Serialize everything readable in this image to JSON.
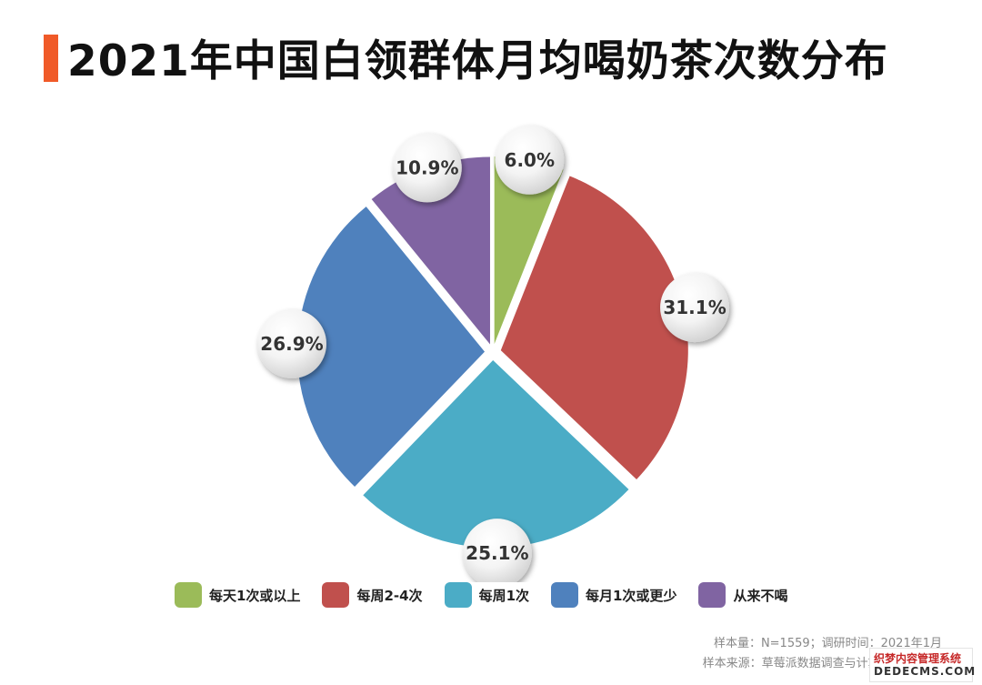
{
  "header": {
    "title": "2021年中国白领群体月均喝奶茶次数分布"
  },
  "chart_data": {
    "type": "pie",
    "title": "2021年中国白领群体月均喝奶茶次数分布",
    "categories": [
      "每天1次或以上",
      "每周2-4次",
      "每周1次",
      "每月1次或更少",
      "从来不喝"
    ],
    "values": [
      6.0,
      31.1,
      25.1,
      26.9,
      10.9
    ],
    "data_labels": [
      "6.0%",
      "31.1%",
      "25.1%",
      "26.9%",
      "10.9%"
    ],
    "colors": [
      "#9bbb59",
      "#c0504d",
      "#4bacc6",
      "#4f81bd",
      "#8064a2"
    ],
    "unit": "%",
    "legend_position": "bottom"
  },
  "notes": {
    "sample": "样本量：N=1559；调研时间：2021年1月",
    "source": "样本来源：草莓派数据调查与计算系统(Straw"
  },
  "watermark": {
    "line1": "织梦内容管理系统",
    "line2": "DEDECMS.COM"
  }
}
